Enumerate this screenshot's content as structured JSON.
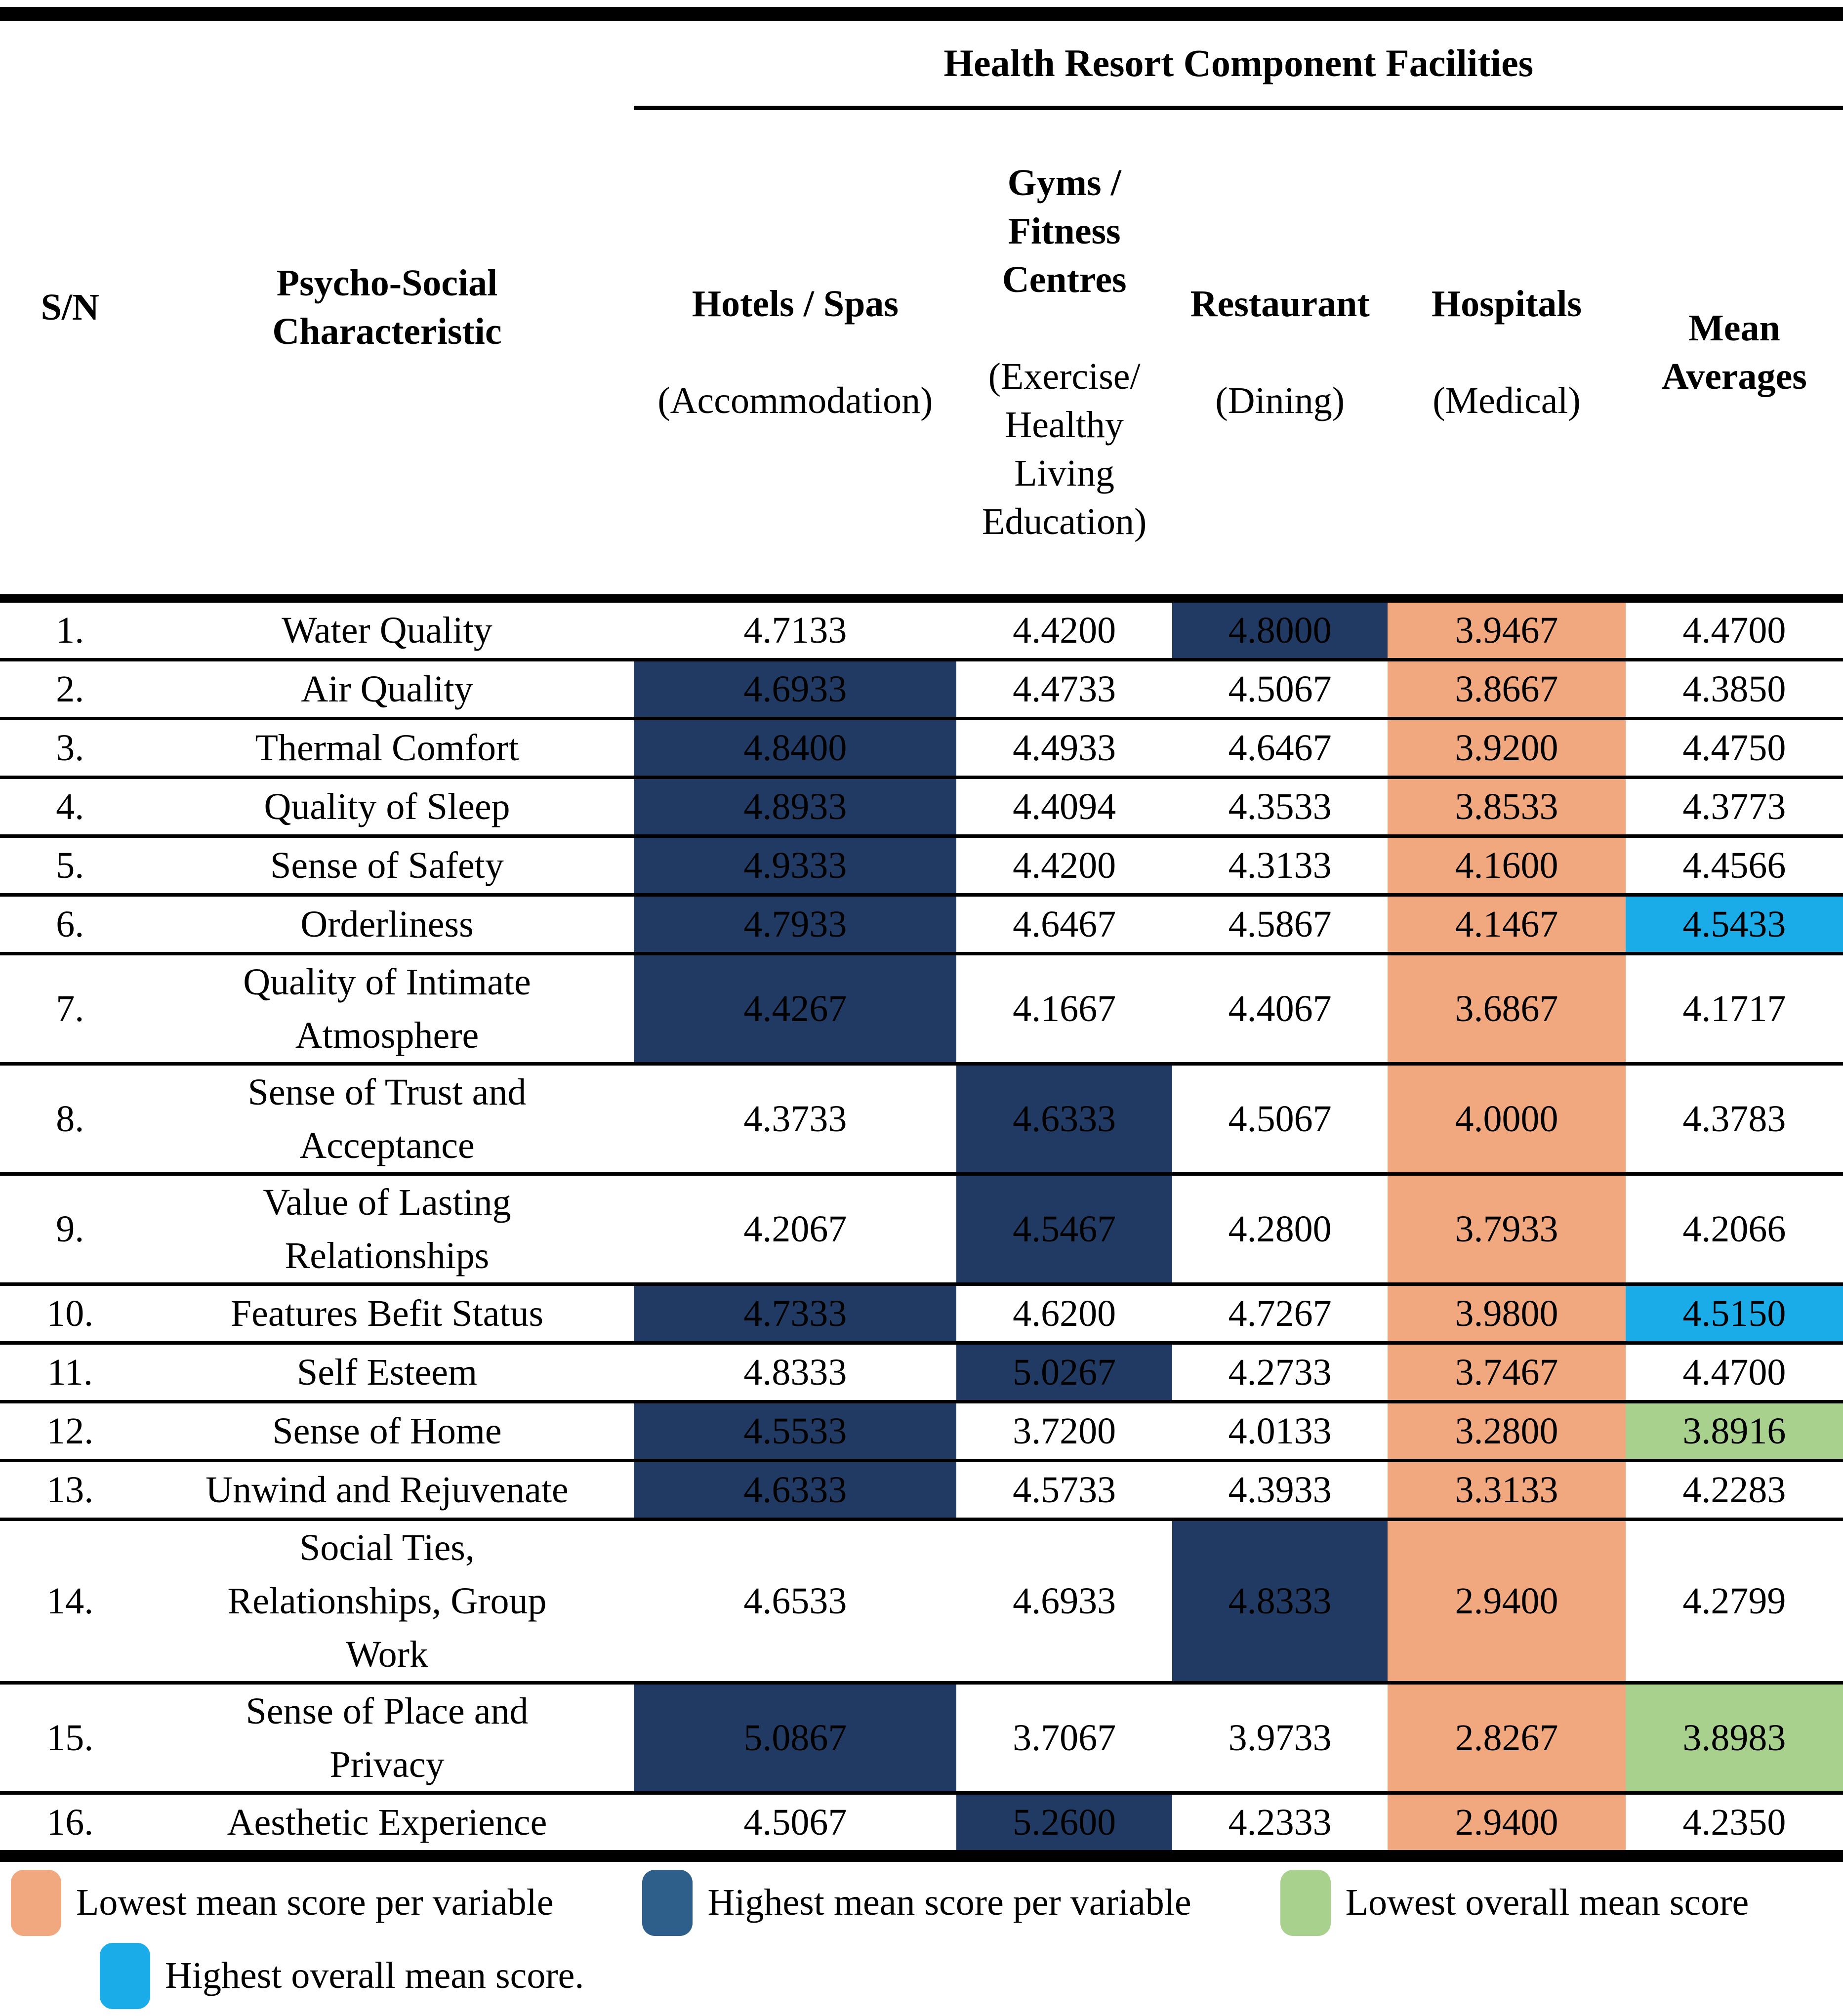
{
  "colors": {
    "highlight_high_navy": "#213A63",
    "highlight_low_orange": "#F2A87E",
    "highlight_lowest_green": "#A9D18E",
    "highlight_highest_cyan": "#1AACE8",
    "legend_navy_swatch": "#2E5E8A",
    "border": "#000000"
  },
  "table": {
    "spanner": "Health Resort Component Facilities",
    "columns": [
      {
        "title": "S/N",
        "subtitle": ""
      },
      {
        "title": "Psycho-Social\nCharacteristic",
        "subtitle": ""
      },
      {
        "title": "Hotels / Spas",
        "subtitle": "(Accommodation)"
      },
      {
        "title": "Gyms /\nFitness\nCentres",
        "subtitle": "(Exercise/\nHealthy\nLiving\nEducation)"
      },
      {
        "title": "Restaurant",
        "subtitle": "(Dining)"
      },
      {
        "title": "Hospitals",
        "subtitle": "(Medical)"
      },
      {
        "title": "Mean\nAverages",
        "subtitle": ""
      }
    ],
    "rows": [
      {
        "sn": "1.",
        "label": "Water Quality",
        "values": [
          "4.7133",
          "4.4200",
          "4.8000",
          "3.9467",
          "4.4700"
        ],
        "hl": [
          "",
          "",
          "high",
          "low",
          ""
        ]
      },
      {
        "sn": "2.",
        "label": "Air Quality",
        "values": [
          "4.6933",
          "4.4733",
          "4.5067",
          "3.8667",
          "4.3850"
        ],
        "hl": [
          "high",
          "",
          "",
          "low",
          ""
        ]
      },
      {
        "sn": "3.",
        "label": "Thermal Comfort",
        "values": [
          "4.8400",
          "4.4933",
          "4.6467",
          "3.9200",
          "4.4750"
        ],
        "hl": [
          "high",
          "",
          "",
          "low",
          ""
        ]
      },
      {
        "sn": "4.",
        "label": "Quality of Sleep",
        "values": [
          "4.8933",
          "4.4094",
          "4.3533",
          "3.8533",
          "4.3773"
        ],
        "hl": [
          "high",
          "",
          "",
          "low",
          ""
        ]
      },
      {
        "sn": "5.",
        "label": "Sense of Safety",
        "values": [
          "4.9333",
          "4.4200",
          "4.3133",
          "4.1600",
          "4.4566"
        ],
        "hl": [
          "high",
          "",
          "",
          "low",
          ""
        ]
      },
      {
        "sn": "6.",
        "label": "Orderliness",
        "values": [
          "4.7933",
          "4.6467",
          "4.5867",
          "4.1467",
          "4.5433"
        ],
        "hl": [
          "high",
          "",
          "",
          "low",
          "highest"
        ]
      },
      {
        "sn": "7.",
        "label": "Quality of Intimate\nAtmosphere",
        "values": [
          "4.4267",
          "4.1667",
          "4.4067",
          "3.6867",
          "4.1717"
        ],
        "hl": [
          "high",
          "",
          "",
          "low",
          ""
        ]
      },
      {
        "sn": "8.",
        "label": "Sense of Trust and\nAcceptance",
        "values": [
          "4.3733",
          "4.6333",
          "4.5067",
          "4.0000",
          "4.3783"
        ],
        "hl": [
          "",
          "high",
          "",
          "low",
          ""
        ]
      },
      {
        "sn": "9.",
        "label": "Value of Lasting\nRelationships",
        "values": [
          "4.2067",
          "4.5467",
          "4.2800",
          "3.7933",
          "4.2066"
        ],
        "hl": [
          "",
          "high",
          "",
          "low",
          ""
        ]
      },
      {
        "sn": "10.",
        "label": "Features Befit Status",
        "values": [
          "4.7333",
          "4.6200",
          "4.7267",
          "3.9800",
          "4.5150"
        ],
        "hl": [
          "high",
          "",
          "",
          "low",
          "highest"
        ]
      },
      {
        "sn": "11.",
        "label": "Self Esteem",
        "values": [
          "4.8333",
          "5.0267",
          "4.2733",
          "3.7467",
          "4.4700"
        ],
        "hl": [
          "",
          "high",
          "",
          "low",
          ""
        ]
      },
      {
        "sn": "12.",
        "label": "Sense of Home",
        "values": [
          "4.5533",
          "3.7200",
          "4.0133",
          "3.2800",
          "3.8916"
        ],
        "hl": [
          "high",
          "",
          "",
          "low",
          "lowest"
        ]
      },
      {
        "sn": "13.",
        "label": "Unwind and Rejuvenate",
        "values": [
          "4.6333",
          "4.5733",
          "4.3933",
          "3.3133",
          "4.2283"
        ],
        "hl": [
          "high",
          "",
          "",
          "low",
          ""
        ]
      },
      {
        "sn": "14.",
        "label": "Social Ties,\nRelationships, Group\nWork",
        "values": [
          "4.6533",
          "4.6933",
          "4.8333",
          "2.9400",
          "4.2799"
        ],
        "hl": [
          "",
          "",
          "high",
          "low",
          ""
        ]
      },
      {
        "sn": "15.",
        "label": "Sense of Place and\nPrivacy",
        "values": [
          "5.0867",
          "3.7067",
          "3.9733",
          "2.8267",
          "3.8983"
        ],
        "hl": [
          "high",
          "",
          "",
          "low",
          "lowest"
        ]
      },
      {
        "sn": "16.",
        "label": "Aesthetic Experience",
        "values": [
          "4.5067",
          "5.2600",
          "4.2333",
          "2.9400",
          "4.2350"
        ],
        "hl": [
          "",
          "high",
          "",
          "low",
          ""
        ]
      }
    ]
  },
  "legend": {
    "items": [
      {
        "swatch": "low",
        "label": "Lowest mean score per variable"
      },
      {
        "swatch": "legend_high",
        "label": "Highest mean score per variable"
      },
      {
        "swatch": "lowest",
        "label": "Lowest overall mean score"
      },
      {
        "swatch": "highest",
        "label": "Highest overall mean score."
      }
    ]
  }
}
